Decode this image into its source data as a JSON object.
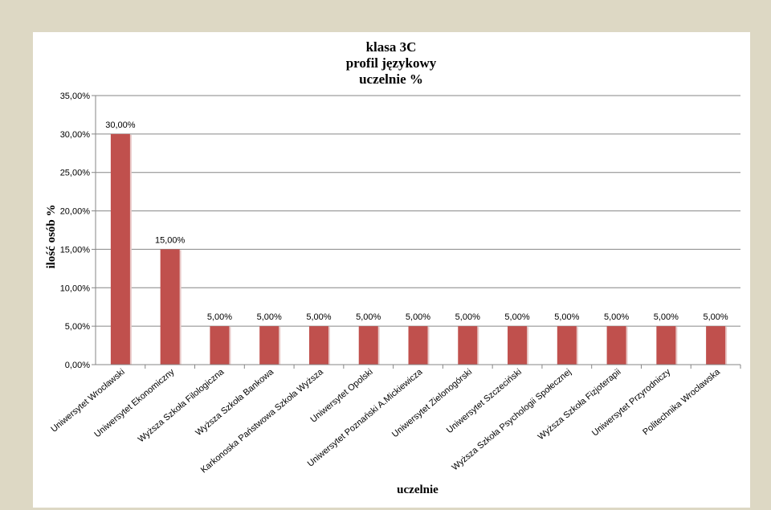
{
  "chart_data": {
    "type": "bar",
    "title": [
      "klasa 3C",
      "profil językowy",
      "uczelnie %"
    ],
    "xlabel": "uczelnie",
    "ylabel": "ilość osób %",
    "ylim": [
      0,
      35
    ],
    "ytick_step": 5,
    "ytick_labels": [
      "0,00%",
      "5,00%",
      "10,00%",
      "15,00%",
      "20,00%",
      "25,00%",
      "30,00%",
      "35,00%"
    ],
    "grid": true,
    "legend": "none",
    "bar_color": "#c0504d",
    "categories": [
      "Uniwersytet Wrocławski",
      "Uniwersytet Ekonomiczny",
      "Wyższa Szkoła Filologiczna",
      "Wyższa Szkoła Bankowa",
      "Karkonoska Państwowa Szkoła Wyższa",
      "Uniwersytet Opolski",
      "Uniwersytet Poznański A.Mickiewicza",
      "Uniwersytet Zielonogórski",
      "Uniwersytet Szczeciński",
      "Wyższa Szkoła Psychologii Społecznej",
      "Wyższa Szkoła Fizjoterapii",
      "Uniwersytet Przyrodniczy",
      "Politechnika Wrocławska"
    ],
    "values": [
      30,
      15,
      5,
      5,
      5,
      5,
      5,
      5,
      5,
      5,
      5,
      5,
      5
    ],
    "data_labels": [
      "30,00%",
      "15,00%",
      "5,00%",
      "5,00%",
      "5,00%",
      "5,00%",
      "5,00%",
      "5,00%",
      "5,00%",
      "5,00%",
      "5,00%",
      "5,00%",
      "5,00%"
    ]
  }
}
